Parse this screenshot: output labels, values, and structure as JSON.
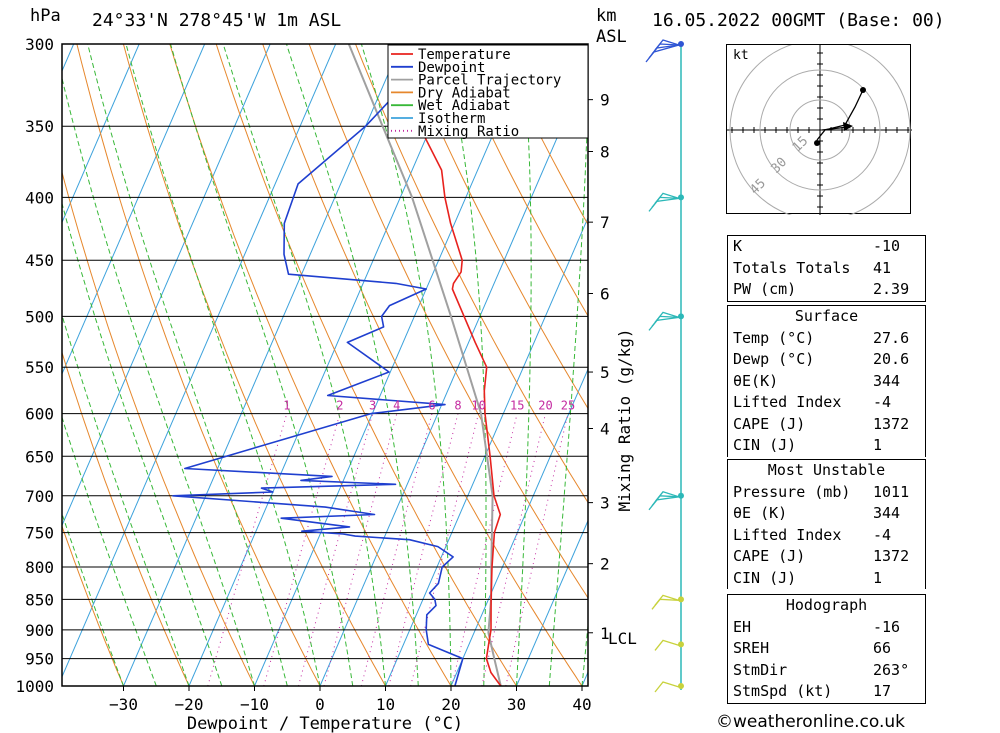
{
  "header": {
    "pressure_unit": "hPa",
    "location": "24°33'N  278°45'W  1m  ASL",
    "km_unit": "km",
    "asl_unit": "ASL",
    "datetime": "16.05.2022  00GMT  (Base: 00)"
  },
  "chart_data": {
    "type": "skew-t log-p",
    "xlabel": "Dewpoint / Temperature (°C)",
    "ylabel_right": "Mixing Ratio (g/kg)",
    "xlim": [
      -40,
      40
    ],
    "ylim_hpa": [
      1000,
      300
    ],
    "x_ticks": [
      -30,
      -20,
      -10,
      0,
      10,
      20,
      30,
      40
    ],
    "pressure_levels": [
      300,
      350,
      400,
      450,
      500,
      550,
      600,
      650,
      700,
      750,
      800,
      850,
      900,
      950,
      1000
    ],
    "height_ticks_km": [
      {
        "label": "9",
        "p": 333
      },
      {
        "label": "8",
        "p": 367
      },
      {
        "label": "7",
        "p": 419
      },
      {
        "label": "6",
        "p": 479
      },
      {
        "label": "5",
        "p": 555
      },
      {
        "label": "4",
        "p": 617
      },
      {
        "label": "3",
        "p": 709
      },
      {
        "label": "2",
        "p": 795
      },
      {
        "label": "1",
        "p": 905
      }
    ],
    "lcl_label": "LCL",
    "lcl_p": 905,
    "mixing_ratio_labels": [
      "1",
      "2",
      "3",
      "4",
      "6",
      "8",
      "10",
      "15",
      "20",
      "25"
    ],
    "mixing_ratio_values": [
      1,
      2,
      3,
      4,
      6,
      8,
      10,
      15,
      20,
      25
    ],
    "legend": [
      "Temperature",
      "Dewpoint",
      "Parcel Trajectory",
      "Dry Adiabat",
      "Wet Adiabat",
      "Isotherm",
      "Mixing Ratio"
    ],
    "colors": {
      "temperature": "#e8221e",
      "dewpoint": "#1f3fcf",
      "parcel": "#a0a0a0",
      "dry_adiabat": "#e6872c",
      "wet_adiabat": "#38b838",
      "isotherm": "#3da2dc",
      "mixing_ratio": "#c42aa0",
      "wind": "#2cb8b8",
      "wind_low": "#c8d23c"
    },
    "series": [
      {
        "name": "Temperature",
        "points": [
          [
            1000,
            27.6
          ],
          [
            975,
            25.2
          ],
          [
            950,
            23.6
          ],
          [
            925,
            23.0
          ],
          [
            900,
            22.4
          ],
          [
            850,
            20.4
          ],
          [
            800,
            18.4
          ],
          [
            750,
            16.5
          ],
          [
            725,
            16.2
          ],
          [
            700,
            14.0
          ],
          [
            650,
            10.8
          ],
          [
            600,
            7.2
          ],
          [
            575,
            5.6
          ],
          [
            550,
            4.4
          ],
          [
            525,
            1.0
          ],
          [
            500,
            -2.4
          ],
          [
            475,
            -6.0
          ],
          [
            470,
            -6.2
          ],
          [
            460,
            -5.8
          ],
          [
            450,
            -6.4
          ],
          [
            420,
            -10.6
          ],
          [
            400,
            -13.2
          ],
          [
            380,
            -15.5
          ],
          [
            350,
            -21.8
          ],
          [
            300,
            -32.0
          ]
        ]
      },
      {
        "name": "Dewpoint",
        "points": [
          [
            1000,
            20.6
          ],
          [
            950,
            20.0
          ],
          [
            925,
            13.8
          ],
          [
            900,
            12.5
          ],
          [
            875,
            11.6
          ],
          [
            860,
            12.4
          ],
          [
            850,
            11.8
          ],
          [
            840,
            10.6
          ],
          [
            825,
            11.3
          ],
          [
            800,
            10.8
          ],
          [
            785,
            11.8
          ],
          [
            770,
            8.8
          ],
          [
            760,
            4.0
          ],
          [
            755,
            -4.5
          ],
          [
            752,
            -6.5
          ],
          [
            748,
            -13.0
          ],
          [
            742,
            -6.0
          ],
          [
            730,
            -17.0
          ],
          [
            725,
            -3.0
          ],
          [
            715,
            -11.0
          ],
          [
            700,
            -35.0
          ],
          [
            695,
            -20.0
          ],
          [
            690,
            -22.0
          ],
          [
            685,
            -1.8
          ],
          [
            680,
            -16.5
          ],
          [
            675,
            -12.0
          ],
          [
            665,
            -35.0
          ],
          [
            600,
            -10.2
          ],
          [
            590,
            0.5
          ],
          [
            580,
            -18.0
          ],
          [
            555,
            -10.2
          ],
          [
            525,
            -18.5
          ],
          [
            510,
            -14.0
          ],
          [
            500,
            -15.0
          ],
          [
            490,
            -14.5
          ],
          [
            475,
            -10.0
          ],
          [
            470,
            -15.0
          ],
          [
            462,
            -32.0
          ],
          [
            445,
            -34.0
          ],
          [
            420,
            -36.0
          ],
          [
            390,
            -36.5
          ],
          [
            350,
            -30.0
          ],
          [
            310,
            -25.0
          ],
          [
            300,
            -25.0
          ]
        ]
      },
      {
        "name": "Parcel Trajectory",
        "points": [
          [
            1000,
            27.6
          ],
          [
            950,
            24.8
          ],
          [
            905,
            22.2
          ],
          [
            850,
            20.4
          ],
          [
            800,
            18.3
          ],
          [
            700,
            13.8
          ],
          [
            600,
            6.6
          ],
          [
            500,
            -4.4
          ],
          [
            400,
            -18.2
          ],
          [
            350,
            -27.4
          ],
          [
            300,
            -38.0
          ]
        ]
      }
    ]
  },
  "hodograph": {
    "unit_label": "kt",
    "ring_labels": [
      "15",
      "30",
      "45"
    ]
  },
  "indices": {
    "rows": [
      {
        "key": "K",
        "value": "-10"
      },
      {
        "key": "Totals Totals",
        "value": "41"
      },
      {
        "key": "PW (cm)",
        "value": "2.39"
      }
    ]
  },
  "surface": {
    "title": "Surface",
    "rows": [
      {
        "key": "Temp (°C)",
        "value": "27.6"
      },
      {
        "key": "Dewp (°C)",
        "value": "20.6"
      },
      {
        "key": "θE(K)",
        "value": "344"
      },
      {
        "key": "Lifted Index",
        "value": "-4"
      },
      {
        "key": "CAPE (J)",
        "value": "1372"
      },
      {
        "key": "CIN (J)",
        "value": "1"
      }
    ]
  },
  "most_unstable": {
    "title": "Most Unstable",
    "rows": [
      {
        "key": "Pressure (mb)",
        "value": "1011"
      },
      {
        "key": "θE (K)",
        "value": "344"
      },
      {
        "key": "Lifted Index",
        "value": "-4"
      },
      {
        "key": "CAPE (J)",
        "value": "1372"
      },
      {
        "key": "CIN (J)",
        "value": "1"
      }
    ]
  },
  "hodograph_table": {
    "title": "Hodograph",
    "rows": [
      {
        "key": "EH",
        "value": "-16"
      },
      {
        "key": "SREH",
        "value": "66"
      },
      {
        "key": "StmDir",
        "value": "263°"
      },
      {
        "key": "StmSpd (kt)",
        "value": "17"
      }
    ]
  },
  "credit": "©weatheronline.co.uk"
}
